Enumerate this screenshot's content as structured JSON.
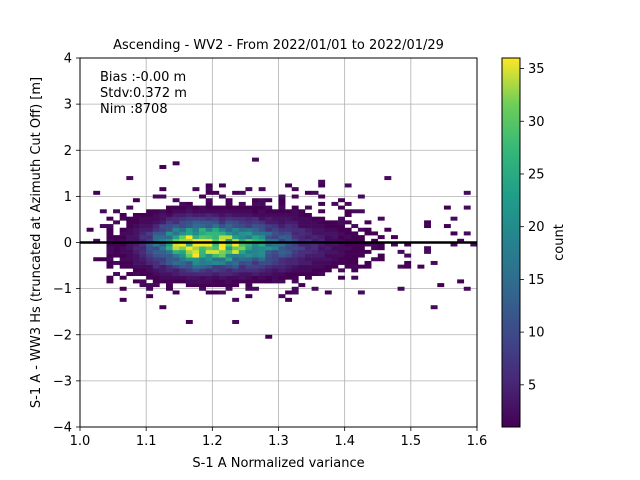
{
  "chart_data": {
    "type": "heatmap",
    "title": "Ascending - WV2 - From 2022/01/01 to 2022/01/29",
    "xlabel": "S-1 A Normalized variance",
    "ylabel": "S-1 A - WW3 Hs (truncated at Azimuth Cut Off) [m]",
    "xlim": [
      1.0,
      1.6
    ],
    "ylim": [
      -4,
      4
    ],
    "x_ticks": [
      "1.0",
      "1.1",
      "1.2",
      "1.3",
      "1.4",
      "1.5",
      "1.6"
    ],
    "y_ticks": [
      "−4",
      "−3",
      "−2",
      "−1",
      "0",
      "1",
      "2",
      "3",
      "4"
    ],
    "grid": true,
    "reference_line": {
      "y": 0,
      "color": "#000000"
    },
    "stats": [
      "Bias :-0.00 m",
      "Stdv:0.372 m",
      "Nim :8708"
    ],
    "colorbar": {
      "label": "count",
      "min": 1,
      "max": 36,
      "ticks": [
        "5",
        "10",
        "15",
        "20",
        "25",
        "30",
        "35"
      ],
      "colormap": "viridis"
    },
    "distribution": {
      "center_x": 1.18,
      "center_y": -0.05,
      "peak_count": 36,
      "n_points": 8708
    }
  }
}
